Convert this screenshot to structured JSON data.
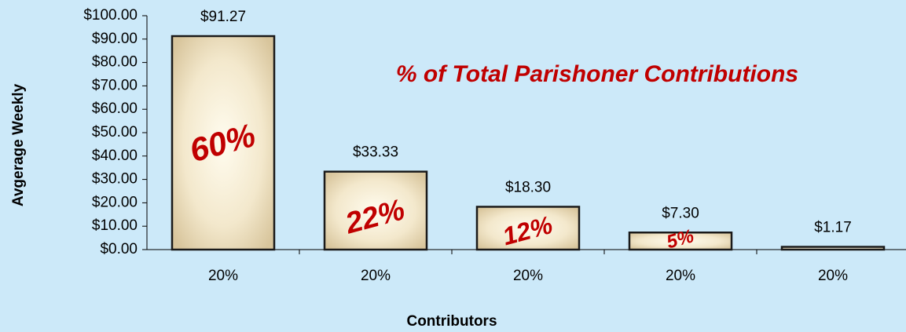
{
  "chart_data": {
    "type": "bar",
    "title": "% of Total Parishoner Contributions",
    "x_label": "Contributors",
    "y_label": "Avgerage Weekly",
    "categories": [
      "20%",
      "20%",
      "20%",
      "20%",
      "20%"
    ],
    "values": [
      91.27,
      33.33,
      18.3,
      7.3,
      1.17
    ],
    "value_labels": [
      "$91.27",
      "$33.33",
      "$18.30",
      "$7.30",
      "$1.17"
    ],
    "bar_labels": [
      "60%",
      "22%",
      "12%",
      "5%",
      null
    ],
    "color": "#e6d6b2",
    "ylim": [
      0,
      100
    ],
    "yticks": [
      {
        "value": 0,
        "label": "$0.00"
      },
      {
        "value": 10,
        "label": "$10.00"
      },
      {
        "value": 20,
        "label": "$20.00"
      },
      {
        "value": 30,
        "label": "$30.00"
      },
      {
        "value": 40,
        "label": "$40.00"
      },
      {
        "value": 50,
        "label": "$50.00"
      },
      {
        "value": 60,
        "label": "$60.00"
      },
      {
        "value": 70,
        "label": "$70.00"
      },
      {
        "value": 80,
        "label": "$80.00"
      },
      {
        "value": 90,
        "label": "$90.00"
      },
      {
        "value": 100,
        "label": "$100.00"
      }
    ],
    "grid": false
  }
}
